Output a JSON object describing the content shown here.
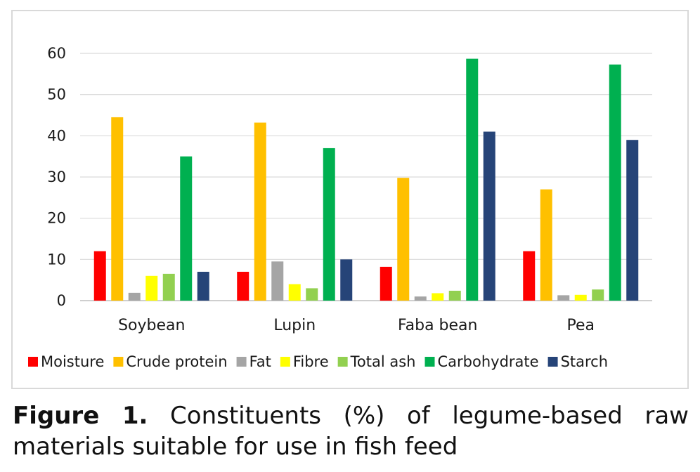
{
  "caption": {
    "label": "Figure 1.",
    "text": "Constituents (%) of legume-based raw materials suitable for use in fish feed"
  },
  "chart_data": {
    "type": "bar",
    "categories": [
      "Soybean",
      "Lupin",
      "Faba bean",
      "Pea"
    ],
    "ylim": [
      0,
      60
    ],
    "yticks": [
      0,
      10,
      20,
      30,
      40,
      50,
      60
    ],
    "grid": true,
    "legend_position": "bottom",
    "series": [
      {
        "name": "Moisture",
        "color": "#ff0000",
        "values": [
          12,
          7,
          8.2,
          12
        ]
      },
      {
        "name": "Crude protein",
        "color": "#ffc000",
        "values": [
          44.5,
          43.2,
          29.8,
          27
        ]
      },
      {
        "name": "Fat",
        "color": "#a5a5a5",
        "values": [
          1.9,
          9.5,
          1,
          1.3
        ]
      },
      {
        "name": "Fibre",
        "color": "#ffff00",
        "values": [
          6,
          4,
          1.8,
          1.4
        ]
      },
      {
        "name": "Total ash",
        "color": "#92d050",
        "values": [
          6.5,
          3,
          2.4,
          2.7
        ]
      },
      {
        "name": "Carbohydrate",
        "color": "#00b050",
        "values": [
          35,
          37,
          58.7,
          57.3
        ]
      },
      {
        "name": "Starch",
        "color": "#264478",
        "values": [
          7,
          10,
          41,
          39
        ]
      }
    ]
  }
}
